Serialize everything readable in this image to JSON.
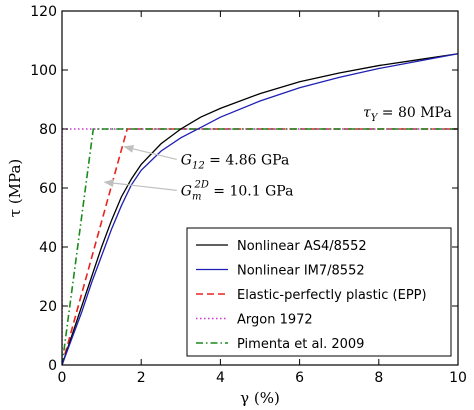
{
  "chart_data": {
    "type": "line",
    "xlabel": "γ (%)",
    "ylabel": "τ (MPa)",
    "xlim": [
      0,
      10
    ],
    "ylim": [
      0,
      120
    ],
    "x_ticks": [
      "0",
      "2",
      "4",
      "6",
      "8",
      "10"
    ],
    "y_ticks": [
      "0",
      "20",
      "40",
      "60",
      "80",
      "100",
      "120"
    ],
    "x_tick_values": [
      0,
      2,
      4,
      6,
      8,
      10
    ],
    "y_tick_values": [
      0,
      20,
      40,
      60,
      80,
      100,
      120
    ],
    "grid": false,
    "legend_position": "lower-right",
    "series": [
      {
        "name": "Nonlinear AS4/8552",
        "color": "#000000",
        "dash": "solid",
        "x": [
          0,
          0.25,
          0.5,
          0.75,
          1.0,
          1.25,
          1.5,
          1.75,
          2.0,
          2.5,
          3.0,
          3.5,
          4.0,
          5.0,
          6.0,
          7.0,
          8.0,
          9.0,
          10.0
        ],
        "y": [
          0,
          10,
          20,
          30,
          40,
          49,
          57,
          63,
          68,
          75,
          80,
          84,
          87,
          92,
          96,
          99,
          101.5,
          103.5,
          105.5
        ]
      },
      {
        "name": "Nonlinear IM7/8552",
        "color": "#1f1fb4",
        "dash": "solid",
        "x": [
          0,
          0.25,
          0.5,
          0.75,
          1.0,
          1.25,
          1.5,
          1.75,
          2.0,
          2.5,
          3.0,
          3.5,
          4.0,
          5.0,
          6.0,
          7.0,
          8.0,
          9.0,
          10.0
        ],
        "y": [
          0,
          9,
          18,
          28,
          37,
          46,
          54,
          61,
          66,
          72.5,
          77,
          80.5,
          84,
          89.5,
          94,
          97.5,
          100.5,
          103,
          105.5
        ]
      },
      {
        "name": "Elastic-perfectly plastic (EPP)",
        "color": "#e8231e",
        "dash": "dashed",
        "x": [
          0,
          1.646,
          10
        ],
        "y": [
          0,
          80,
          80
        ]
      },
      {
        "name": "Argon 1972",
        "color": "#cc33cc",
        "dash": "dotted",
        "x": [
          0,
          0,
          10
        ],
        "y": [
          0,
          80,
          80
        ]
      },
      {
        "name": "Pimenta et al. 2009",
        "color": "#1a8a1a",
        "dash": "dashdot",
        "x": [
          0,
          0.79,
          10
        ],
        "y": [
          0,
          80,
          80
        ]
      }
    ],
    "annotations": [
      {
        "id": "tau-y",
        "text_main": "τ",
        "text_sub": "Y",
        "text_rest": " = 80 MPa",
        "x": 7.6,
        "y": 84
      },
      {
        "id": "g12",
        "text_main": "G",
        "text_sub": "12",
        "text_rest": " = 4.86 GPa",
        "x": 3.0,
        "y": 68,
        "arrow_to": [
          1.5,
          74
        ]
      },
      {
        "id": "gm2d",
        "text_main": "G",
        "text_sub": "m",
        "text_sup": "2D",
        "text_rest": " = 10.1 GPa",
        "x": 3.0,
        "y": 57.5,
        "arrow_to": [
          1.0,
          62
        ]
      }
    ]
  }
}
